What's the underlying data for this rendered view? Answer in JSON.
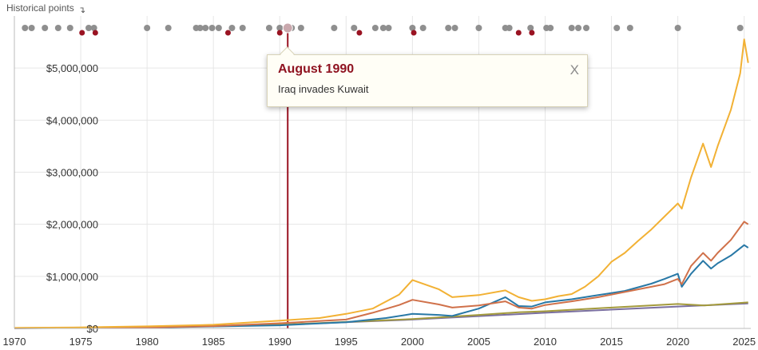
{
  "historical_points_label": "Historical points",
  "tooltip": {
    "title": "August 1990",
    "body": "Iraq invades Kuwait",
    "close_label": "X"
  },
  "colors": {
    "gold": "#f2b134",
    "orange": "#d0714a",
    "blue": "#2878a6",
    "olive": "#a39a3c",
    "purple": "#7a6fa0",
    "marker_gray": "#8f8f8f",
    "marker_red": "#9a1322",
    "selected_line": "#9a1322",
    "grid": "#e6e6e6"
  },
  "chart_data": {
    "type": "line",
    "xlim": [
      1970,
      2025.5
    ],
    "ylim": [
      0,
      6000000
    ],
    "x_ticks": [
      "1970",
      "1975",
      "1980",
      "1985",
      "1990",
      "1995",
      "2000",
      "2005",
      "2010",
      "2015",
      "2020",
      "2025"
    ],
    "y_ticks": [
      {
        "value": 0,
        "label": "$0"
      },
      {
        "value": 1000000,
        "label": "$1,000,000"
      },
      {
        "value": 2000000,
        "label": "$2,000,000"
      },
      {
        "value": 3000000,
        "label": "$3,000,000"
      },
      {
        "value": 4000000,
        "label": "$4,000,000"
      },
      {
        "value": 5000000,
        "label": "$5,000,000"
      }
    ],
    "selected_event_x": 1990.6,
    "historical_markers_gray": [
      1970.8,
      1971.3,
      1972.3,
      1973.3,
      1974.2,
      1975.6,
      1976.0,
      1980.0,
      1981.6,
      1983.7,
      1984.0,
      1984.4,
      1984.9,
      1985.4,
      1986.4,
      1987.2,
      1989.2,
      1990.0,
      1990.9,
      1991.6,
      1994.1,
      1995.6,
      1997.2,
      1997.8,
      1998.2,
      2000.0,
      2000.8,
      2002.7,
      2003.2,
      2005.0,
      2007.0,
      2007.3,
      2008.9,
      2010.1,
      2010.4,
      2012.0,
      2012.5,
      2013.1,
      2015.4,
      2016.4,
      2020.0,
      2024.7
    ],
    "historical_markers_red": [
      1975.1,
      1976.1,
      1986.1,
      1990.0,
      1996.0,
      2000.1,
      2008.0,
      2009.0
    ],
    "series": [
      {
        "color_key": "gold",
        "x": [
          1970,
          1975,
          1980,
          1985,
          1988,
          1990,
          1993,
          1995,
          1997,
          1999,
          2000,
          2002,
          2003,
          2005,
          2007,
          2008,
          2009,
          2010,
          2011,
          2012,
          2013,
          2014,
          2015,
          2016,
          2017,
          2018,
          2019,
          2020,
          2020.3,
          2021,
          2021.9,
          2022.5,
          2023,
          2024,
          2024.7,
          2025,
          2025.3
        ],
        "y": [
          10000,
          20000,
          40000,
          70000,
          120000,
          150000,
          200000,
          280000,
          380000,
          650000,
          930000,
          750000,
          600000,
          640000,
          730000,
          600000,
          530000,
          560000,
          620000,
          660000,
          800000,
          1000000,
          1280000,
          1450000,
          1680000,
          1900000,
          2150000,
          2400000,
          2300000,
          2900000,
          3550000,
          3100000,
          3500000,
          4200000,
          4900000,
          5550000,
          5100000
        ]
      },
      {
        "color_key": "orange",
        "x": [
          1970,
          1980,
          1985,
          1990,
          1995,
          1997,
          1999,
          2000,
          2002,
          2003,
          2005,
          2007,
          2008,
          2009,
          2010,
          2012,
          2014,
          2016,
          2018,
          2019,
          2020,
          2020.3,
          2021,
          2021.9,
          2022.5,
          2023,
          2024,
          2025,
          2025.3
        ],
        "y": [
          5000,
          20000,
          45000,
          100000,
          170000,
          300000,
          450000,
          550000,
          460000,
          400000,
          440000,
          520000,
          400000,
          380000,
          450000,
          520000,
          600000,
          700000,
          800000,
          850000,
          950000,
          850000,
          1200000,
          1450000,
          1300000,
          1450000,
          1700000,
          2050000,
          2000000
        ]
      },
      {
        "color_key": "blue",
        "x": [
          1970,
          1980,
          1990,
          1995,
          1998,
          2000,
          2002,
          2003,
          2005,
          2007,
          2008,
          2009,
          2010,
          2012,
          2014,
          2016,
          2018,
          2019,
          2020,
          2020.3,
          2021,
          2021.9,
          2022.5,
          2023,
          2024,
          2025,
          2025.3
        ],
        "y": [
          5000,
          15000,
          60000,
          120000,
          200000,
          280000,
          260000,
          240000,
          380000,
          600000,
          430000,
          420000,
          500000,
          560000,
          640000,
          720000,
          860000,
          950000,
          1050000,
          800000,
          1050000,
          1300000,
          1150000,
          1250000,
          1400000,
          1600000,
          1550000
        ]
      },
      {
        "color_key": "olive",
        "x": [
          1970,
          1980,
          1990,
          2000,
          2005,
          2008,
          2010,
          2015,
          2020,
          2022,
          2025.3
        ],
        "y": [
          8000,
          25000,
          70000,
          180000,
          260000,
          310000,
          330000,
          400000,
          470000,
          440000,
          500000
        ]
      },
      {
        "color_key": "purple",
        "x": [
          1970,
          1980,
          1990,
          2000,
          2010,
          2020,
          2025.3
        ],
        "y": [
          6000,
          20000,
          70000,
          170000,
          300000,
          420000,
          480000
        ]
      }
    ]
  }
}
